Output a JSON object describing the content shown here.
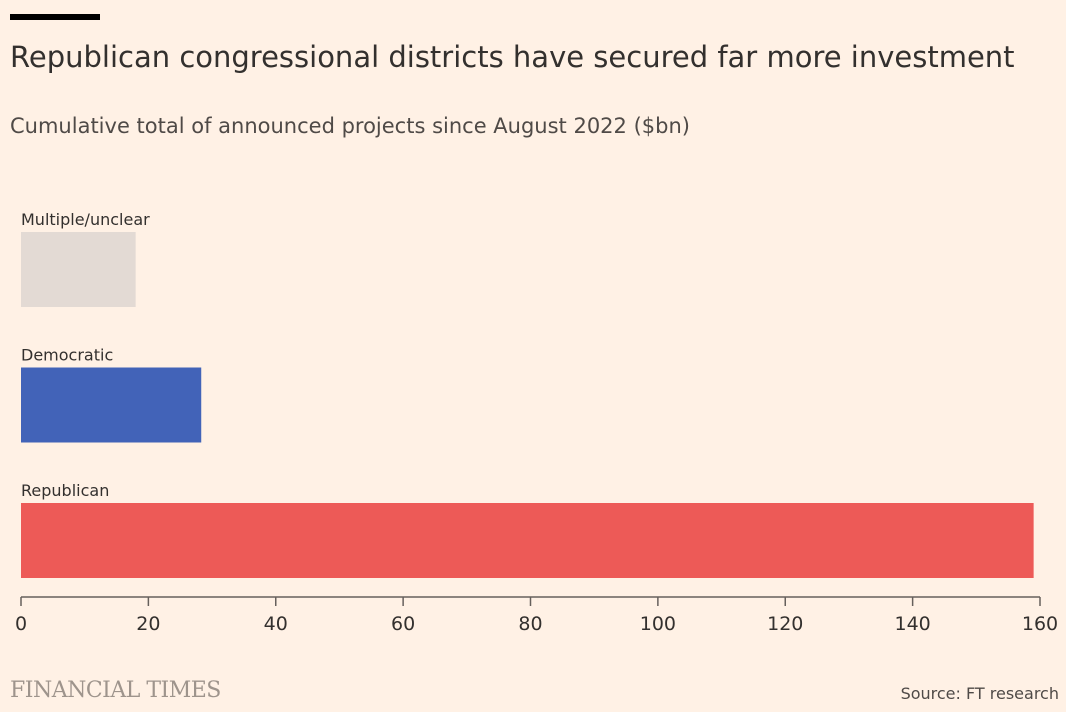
{
  "header": {
    "title": "Republican congressional districts have secured far more investment",
    "subtitle": "Cumulative total of announced projects since August 2022 ($bn)"
  },
  "chart_data": {
    "type": "bar",
    "orientation": "horizontal",
    "categories": [
      "Multiple/unclear",
      "Democratic",
      "Republican"
    ],
    "values": [
      18,
      28.3,
      159
    ],
    "colors": [
      "#E3DAD4",
      "#4263B8",
      "#ED5A57"
    ],
    "xlim": [
      0,
      160
    ],
    "xticks": [
      "0",
      "20",
      "40",
      "60",
      "80",
      "100",
      "120",
      "140",
      "160"
    ],
    "grid": false,
    "legend": "none"
  },
  "footer": {
    "brand": "FINANCIAL TIMES",
    "source": "Source: FT research"
  }
}
